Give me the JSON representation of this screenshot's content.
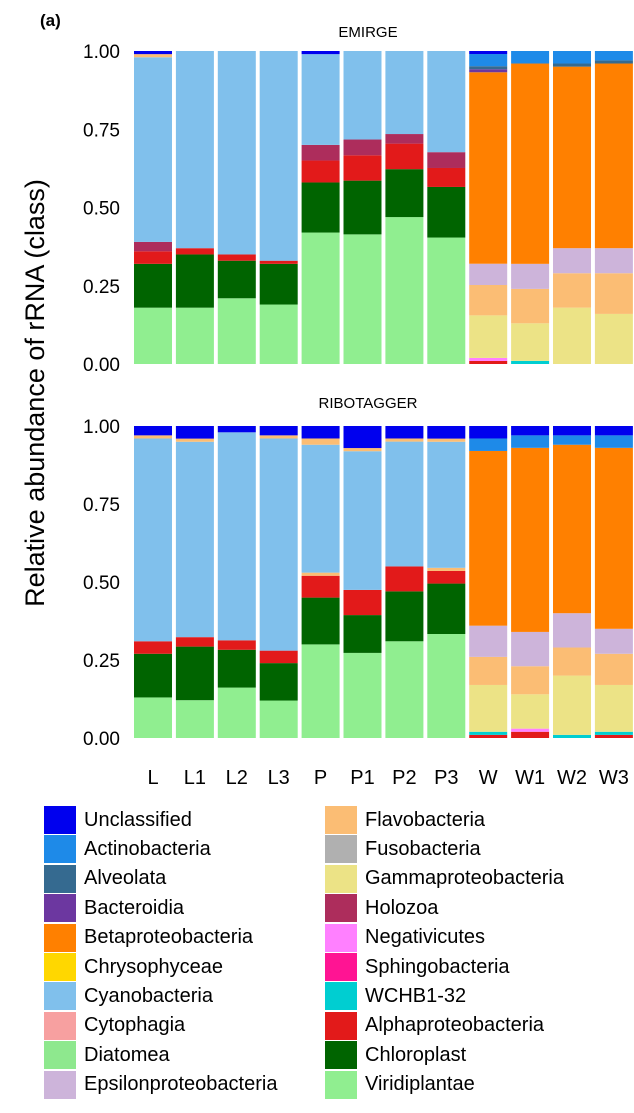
{
  "panel_label": "(a)",
  "y_axis_label": "Relative abundance of rRNA (class)",
  "ticks": [
    "0.00",
    "0.25",
    "0.50",
    "0.75",
    "1.00"
  ],
  "colors": {
    "Unclassified": "#0000ee",
    "Actinobacteria": "#1e8ae8",
    "Alveolata": "#356a90",
    "Bacteroidia": "#6c37a0",
    "Betaproteobacteria": "#ff8000",
    "Chrysophyceae": "#ffd700",
    "Cyanobacteria": "#80c0ec",
    "Cytophagia": "#f7a0a0",
    "Diatomea": "#8ee88e",
    "Epsilonproteobacteria": "#cdb4da",
    "Flavobacteria": "#fbbd74",
    "Fusobacteria": "#b0b0b0",
    "Gammaproteobacteria": "#ece386",
    "Holozoa": "#ad2d5c",
    "Negativicutes": "#ff80ff",
    "Sphingobacteria": "#ff1493",
    "WCHB1-32": "#00ced1",
    "Alphaproteobacteria": "#e21a1a",
    "Chloroplast": "#006400",
    "Viridiplantae": "#90ee90"
  },
  "legend": {
    "col1": [
      "Unclassified",
      "Actinobacteria",
      "Alveolata",
      "Bacteroidia",
      "Betaproteobacteria",
      "Chrysophyceae",
      "Cyanobacteria",
      "Cytophagia",
      "Diatomea",
      "Epsilonproteobacteria"
    ],
    "col2": [
      "Flavobacteria",
      "Fusobacteria",
      "Gammaproteobacteria",
      "Holozoa",
      "Negativicutes",
      "Sphingobacteria",
      "WCHB1-32",
      "Alphaproteobacteria",
      "Chloroplast",
      "Viridiplantae"
    ]
  },
  "chart_data": [
    {
      "type": "bar",
      "stacked": true,
      "title": "EMIRGE",
      "ylabel": "Relative abundance of rRNA (class)",
      "ylim": [
        0,
        1
      ],
      "categories": [
        "L",
        "L1",
        "L2",
        "L3",
        "P",
        "P1",
        "P2",
        "P3",
        "W",
        "W1",
        "W2",
        "W3"
      ],
      "series": [
        {
          "name": "Viridiplantae",
          "values": [
            0.18,
            0.18,
            0.21,
            0.19,
            0.42,
            0.41,
            0.46,
            0.4,
            0.0,
            0.0,
            0.0,
            0.0
          ]
        },
        {
          "name": "Chloroplast",
          "values": [
            0.14,
            0.17,
            0.12,
            0.13,
            0.16,
            0.17,
            0.15,
            0.16,
            0.0,
            0.0,
            0.0,
            0.0
          ]
        },
        {
          "name": "Alphaproteobacteria",
          "values": [
            0.04,
            0.02,
            0.02,
            0.01,
            0.07,
            0.08,
            0.08,
            0.06,
            0.01,
            0.0,
            0.0,
            0.0
          ]
        },
        {
          "name": "WCHB1-32",
          "values": [
            0.0,
            0.0,
            0.0,
            0.0,
            0.0,
            0.0,
            0.0,
            0.0,
            0.0,
            0.01,
            0.0,
            0.0
          ]
        },
        {
          "name": "Negativicutes",
          "values": [
            0.0,
            0.0,
            0.0,
            0.0,
            0.0,
            0.0,
            0.0,
            0.0,
            0.01,
            0.0,
            0.0,
            0.0
          ]
        },
        {
          "name": "Gammaproteobacteria",
          "values": [
            0.0,
            0.0,
            0.0,
            0.0,
            0.0,
            0.0,
            0.0,
            0.0,
            0.14,
            0.12,
            0.18,
            0.16
          ]
        },
        {
          "name": "Flavobacteria",
          "values": [
            0.0,
            0.0,
            0.0,
            0.0,
            0.0,
            0.0,
            0.0,
            0.0,
            0.1,
            0.11,
            0.11,
            0.13
          ]
        },
        {
          "name": "Epsilonproteobacteria",
          "values": [
            0.0,
            0.0,
            0.0,
            0.0,
            0.0,
            0.0,
            0.0,
            0.0,
            0.07,
            0.08,
            0.08,
            0.08
          ]
        },
        {
          "name": "Holozoa",
          "values": [
            0.03,
            0.0,
            0.0,
            0.0,
            0.05,
            0.05,
            0.03,
            0.05,
            0.0,
            0.0,
            0.0,
            0.0
          ]
        },
        {
          "name": "Cyanobacteria",
          "values": [
            0.59,
            0.63,
            0.65,
            0.67,
            0.29,
            0.28,
            0.26,
            0.32,
            0.0,
            0.0,
            0.0,
            0.0
          ]
        },
        {
          "name": "Betaproteobacteria",
          "values": [
            0.0,
            0.0,
            0.0,
            0.0,
            0.0,
            0.0,
            0.0,
            0.0,
            0.63,
            0.64,
            0.58,
            0.59
          ]
        },
        {
          "name": "Bacteroidia",
          "values": [
            0.0,
            0.0,
            0.0,
            0.0,
            0.0,
            0.0,
            0.0,
            0.0,
            0.01,
            0.0,
            0.0,
            0.0
          ]
        },
        {
          "name": "Alveolata",
          "values": [
            0.0,
            0.0,
            0.0,
            0.0,
            0.0,
            0.0,
            0.0,
            0.0,
            0.01,
            0.0,
            0.01,
            0.01
          ]
        },
        {
          "name": "Actinobacteria",
          "values": [
            0.0,
            0.0,
            0.0,
            0.0,
            0.0,
            0.0,
            0.0,
            0.0,
            0.04,
            0.04,
            0.04,
            0.03
          ]
        },
        {
          "name": "Flavobacteria (top)",
          "values": [
            0.01,
            0.0,
            0.0,
            0.0,
            0.0,
            0.0,
            0.0,
            0.0,
            0.0,
            0.0,
            0.0,
            0.0
          ]
        },
        {
          "name": "Unclassified",
          "values": [
            0.01,
            0.0,
            0.0,
            0.0,
            0.01,
            0.0,
            0.0,
            0.0,
            0.01,
            0.0,
            0.0,
            0.0
          ]
        }
      ]
    },
    {
      "type": "bar",
      "stacked": true,
      "title": "RIBOTAGGER",
      "ylabel": "Relative abundance of rRNA (class)",
      "ylim": [
        0,
        1
      ],
      "categories": [
        "L",
        "L1",
        "L2",
        "L3",
        "P",
        "P1",
        "P2",
        "P3",
        "W",
        "W1",
        "W2",
        "W3"
      ],
      "series": [
        {
          "name": "Viridiplantae",
          "values": [
            0.13,
            0.12,
            0.16,
            0.12,
            0.3,
            0.27,
            0.31,
            0.33,
            0.0,
            0.0,
            0.0,
            0.0
          ]
        },
        {
          "name": "Chloroplast",
          "values": [
            0.14,
            0.17,
            0.12,
            0.12,
            0.15,
            0.12,
            0.16,
            0.16,
            0.0,
            0.0,
            0.0,
            0.0
          ]
        },
        {
          "name": "Alphaproteobacteria",
          "values": [
            0.04,
            0.03,
            0.03,
            0.04,
            0.07,
            0.08,
            0.08,
            0.04,
            0.01,
            0.02,
            0.0,
            0.01
          ]
        },
        {
          "name": "WCHB1-32",
          "values": [
            0.0,
            0.0,
            0.0,
            0.0,
            0.0,
            0.0,
            0.0,
            0.0,
            0.01,
            0.0,
            0.01,
            0.01
          ]
        },
        {
          "name": "Negativicutes",
          "values": [
            0.0,
            0.0,
            0.0,
            0.0,
            0.0,
            0.0,
            0.0,
            0.0,
            0.0,
            0.01,
            0.0,
            0.0
          ]
        },
        {
          "name": "Gammaproteobacteria",
          "values": [
            0.0,
            0.0,
            0.0,
            0.0,
            0.0,
            0.0,
            0.0,
            0.0,
            0.15,
            0.11,
            0.19,
            0.15
          ]
        },
        {
          "name": "Flavobacteria",
          "values": [
            0.0,
            0.0,
            0.0,
            0.0,
            0.01,
            0.0,
            0.0,
            0.01,
            0.09,
            0.09,
            0.09,
            0.1
          ]
        },
        {
          "name": "Epsilonproteobacteria",
          "values": [
            0.0,
            0.0,
            0.0,
            0.0,
            0.0,
            0.0,
            0.0,
            0.0,
            0.1,
            0.11,
            0.11,
            0.08
          ]
        },
        {
          "name": "Holozoa",
          "values": [
            0.0,
            0.0,
            0.0,
            0.0,
            0.0,
            0.0,
            0.0,
            0.0,
            0.0,
            0.0,
            0.0,
            0.0
          ]
        },
        {
          "name": "Cyanobacteria",
          "values": [
            0.65,
            0.62,
            0.66,
            0.68,
            0.41,
            0.44,
            0.4,
            0.4,
            0.0,
            0.0,
            0.0,
            0.0
          ]
        },
        {
          "name": "Betaproteobacteria",
          "values": [
            0.0,
            0.0,
            0.0,
            0.0,
            0.0,
            0.0,
            0.0,
            0.0,
            0.56,
            0.59,
            0.54,
            0.58
          ]
        },
        {
          "name": "Bacteroidia",
          "values": [
            0.0,
            0.0,
            0.0,
            0.0,
            0.0,
            0.0,
            0.0,
            0.0,
            0.0,
            0.0,
            0.0,
            0.0
          ]
        },
        {
          "name": "Alveolata",
          "values": [
            0.0,
            0.0,
            0.0,
            0.0,
            0.0,
            0.0,
            0.0,
            0.0,
            0.0,
            0.0,
            0.0,
            0.0
          ]
        },
        {
          "name": "Actinobacteria",
          "values": [
            0.0,
            0.0,
            0.0,
            0.0,
            0.0,
            0.0,
            0.0,
            0.0,
            0.04,
            0.04,
            0.03,
            0.04
          ]
        },
        {
          "name": "Flavobacteria (top)",
          "values": [
            0.01,
            0.01,
            0.0,
            0.01,
            0.02,
            0.01,
            0.01,
            0.01,
            0.0,
            0.0,
            0.0,
            0.0
          ]
        },
        {
          "name": "Unclassified",
          "values": [
            0.03,
            0.04,
            0.02,
            0.03,
            0.04,
            0.07,
            0.04,
            0.04,
            0.04,
            0.03,
            0.03,
            0.03
          ]
        }
      ]
    }
  ]
}
